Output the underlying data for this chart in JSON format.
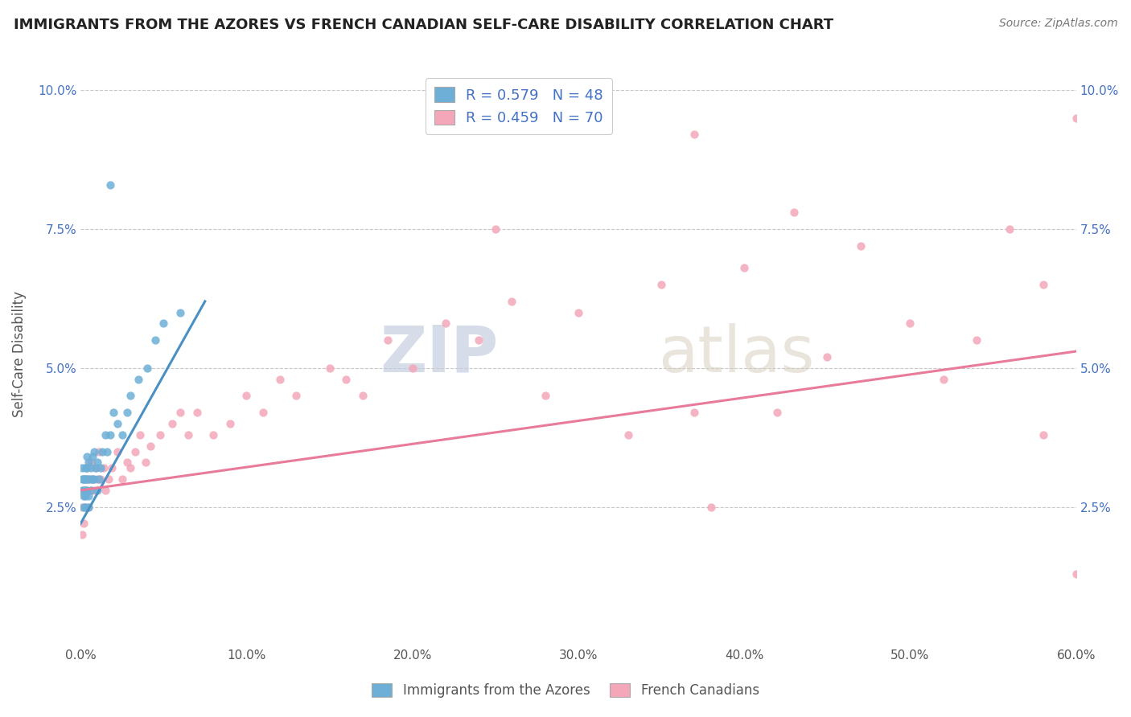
{
  "title": "IMMIGRANTS FROM THE AZORES VS FRENCH CANADIAN SELF-CARE DISABILITY CORRELATION CHART",
  "source": "Source: ZipAtlas.com",
  "ylabel": "Self-Care Disability",
  "xlim": [
    0.0,
    0.6
  ],
  "ylim": [
    0.0,
    0.105
  ],
  "yticks": [
    0.025,
    0.05,
    0.075,
    0.1
  ],
  "ytick_labels": [
    "2.5%",
    "5.0%",
    "7.5%",
    "10.0%"
  ],
  "legend_r1": "R = 0.579   N = 48",
  "legend_r2": "R = 0.459   N = 70",
  "legend_label1": "Immigrants from the Azores",
  "legend_label2": "French Canadians",
  "blue_color": "#6dafd7",
  "pink_color": "#f4a7b9",
  "blue_line_color": "#4a90c4",
  "pink_line_color": "#e87a9a",
  "watermark_zip": "ZIP",
  "watermark_atlas": "atlas",
  "background_color": "#ffffff",
  "azores_x": [
    0.001,
    0.001,
    0.001,
    0.002,
    0.002,
    0.002,
    0.002,
    0.002,
    0.003,
    0.003,
    0.003,
    0.003,
    0.003,
    0.004,
    0.004,
    0.004,
    0.004,
    0.005,
    0.005,
    0.005,
    0.005,
    0.006,
    0.006,
    0.006,
    0.007,
    0.007,
    0.008,
    0.008,
    0.009,
    0.01,
    0.01,
    0.011,
    0.012,
    0.013,
    0.015,
    0.016,
    0.018,
    0.02,
    0.022,
    0.025,
    0.028,
    0.03,
    0.035,
    0.04,
    0.045,
    0.05,
    0.06,
    0.018
  ],
  "azores_y": [
    0.03,
    0.028,
    0.032,
    0.025,
    0.027,
    0.03,
    0.028,
    0.03,
    0.028,
    0.03,
    0.025,
    0.027,
    0.032,
    0.03,
    0.034,
    0.028,
    0.032,
    0.03,
    0.025,
    0.027,
    0.033,
    0.028,
    0.03,
    0.032,
    0.03,
    0.034,
    0.03,
    0.035,
    0.032,
    0.033,
    0.028,
    0.03,
    0.032,
    0.035,
    0.038,
    0.035,
    0.038,
    0.042,
    0.04,
    0.038,
    0.042,
    0.045,
    0.048,
    0.05,
    0.055,
    0.058,
    0.06,
    0.083
  ],
  "french_x": [
    0.001,
    0.001,
    0.002,
    0.002,
    0.003,
    0.003,
    0.004,
    0.004,
    0.005,
    0.005,
    0.006,
    0.006,
    0.007,
    0.008,
    0.009,
    0.01,
    0.011,
    0.012,
    0.014,
    0.015,
    0.017,
    0.019,
    0.022,
    0.025,
    0.028,
    0.03,
    0.033,
    0.036,
    0.039,
    0.042,
    0.048,
    0.055,
    0.06,
    0.065,
    0.07,
    0.08,
    0.09,
    0.1,
    0.11,
    0.12,
    0.13,
    0.15,
    0.16,
    0.17,
    0.185,
    0.2,
    0.22,
    0.24,
    0.26,
    0.28,
    0.3,
    0.33,
    0.35,
    0.37,
    0.38,
    0.4,
    0.42,
    0.45,
    0.47,
    0.5,
    0.52,
    0.54,
    0.56,
    0.58,
    0.6,
    0.37,
    0.43,
    0.25,
    0.6,
    0.58
  ],
  "french_y": [
    0.025,
    0.02,
    0.028,
    0.022,
    0.025,
    0.03,
    0.028,
    0.032,
    0.025,
    0.03,
    0.028,
    0.033,
    0.03,
    0.028,
    0.032,
    0.03,
    0.035,
    0.03,
    0.032,
    0.028,
    0.03,
    0.032,
    0.035,
    0.03,
    0.033,
    0.032,
    0.035,
    0.038,
    0.033,
    0.036,
    0.038,
    0.04,
    0.042,
    0.038,
    0.042,
    0.038,
    0.04,
    0.045,
    0.042,
    0.048,
    0.045,
    0.05,
    0.048,
    0.045,
    0.055,
    0.05,
    0.058,
    0.055,
    0.062,
    0.045,
    0.06,
    0.038,
    0.065,
    0.042,
    0.025,
    0.068,
    0.042,
    0.052,
    0.072,
    0.058,
    0.048,
    0.055,
    0.075,
    0.038,
    0.095,
    0.092,
    0.078,
    0.075,
    0.013,
    0.065
  ],
  "az_trend_x": [
    0.0,
    0.075
  ],
  "az_trend_y": [
    0.022,
    0.062
  ],
  "fr_trend_x": [
    0.0,
    0.6
  ],
  "fr_trend_y": [
    0.028,
    0.053
  ]
}
